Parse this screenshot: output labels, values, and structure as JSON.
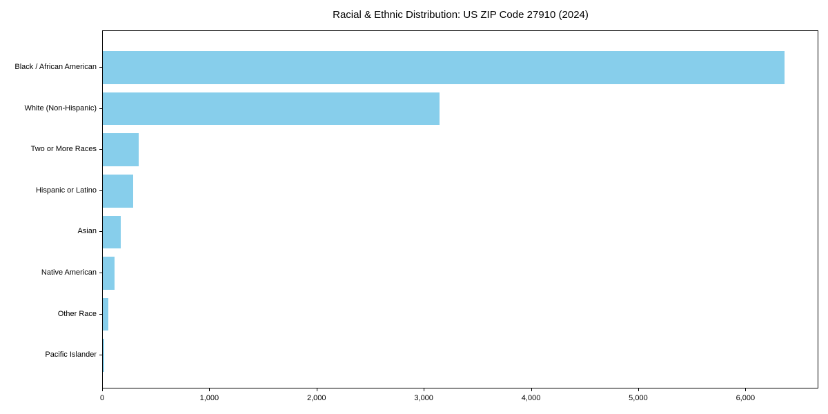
{
  "figure": {
    "background_color": "#ffffff",
    "axis_color": "#000000"
  },
  "chart_data": {
    "type": "bar",
    "orientation": "horizontal",
    "title": "Racial & Ethnic Distribution: US ZIP Code 27910 (2024)",
    "categories": [
      "Black / African American",
      "White (Non-Hispanic)",
      "Two or More Races",
      "Hispanic or Latino",
      "Asian",
      "Native American",
      "Other Race",
      "Pacific Islander"
    ],
    "values": [
      6360,
      3140,
      335,
      280,
      165,
      110,
      50,
      13
    ],
    "xlabel": "",
    "ylabel": "",
    "xlim": [
      0,
      6680
    ],
    "x_ticks": [
      0,
      1000,
      2000,
      3000,
      4000,
      5000,
      6000
    ],
    "x_tick_labels": [
      "0",
      "1,000",
      "2,000",
      "3,000",
      "4,000",
      "5,000",
      "6,000"
    ],
    "bar_color": "#87CEEB",
    "grid": false,
    "legend_position": "none",
    "sort_order": "descending"
  }
}
